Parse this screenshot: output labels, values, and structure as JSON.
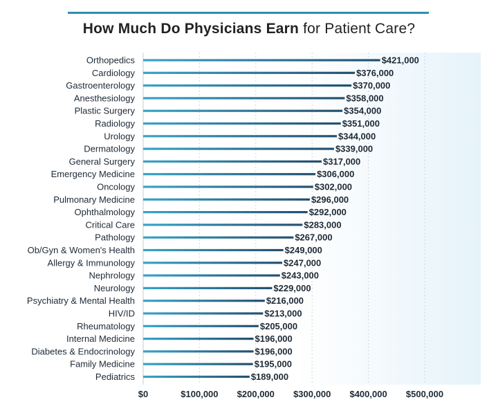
{
  "title": {
    "strong": "How Much Do Physicians Earn",
    "rest": " for Patient Care?"
  },
  "colors": {
    "bar": "#2a5f80",
    "bar_highlight": "#3aa4c8",
    "plot_bg_right": "#e9f5fb",
    "title_rule": "#2f8fb0",
    "grid": "#c9d8e0"
  },
  "chart_data": {
    "type": "bar",
    "orientation": "horizontal",
    "title": "How Much Do Physicians Earn for Patient Care?",
    "xlabel": "",
    "ylabel": "",
    "xlim": [
      0,
      500000
    ],
    "xticks": [
      0,
      100000,
      200000,
      300000,
      400000,
      500000
    ],
    "xtick_labels": [
      "$0",
      "$100,000",
      "$200,000",
      "$300,000",
      "$400,000",
      "$500,000"
    ],
    "grid": "vertical dotted",
    "categories": [
      "Orthopedics",
      "Cardiology",
      "Gastroenterology",
      "Anesthesiology",
      "Plastic Surgery",
      "Radiology",
      "Urology",
      "Dermatology",
      "General Surgery",
      "Emergency Medicine",
      "Oncology",
      "Pulmonary Medicine",
      "Ophthalmology",
      "Critical Care",
      "Pathology",
      "Ob/Gyn & Women's Health",
      "Allergy & Immunology",
      "Nephrology",
      "Neurology",
      "Psychiatry & Mental Health",
      "HIV/ID",
      "Rheumatology",
      "Internal Medicine",
      "Diabetes & Endocrinology",
      "Family Medicine",
      "Pediatrics"
    ],
    "values": [
      421000,
      376000,
      370000,
      358000,
      354000,
      351000,
      344000,
      339000,
      317000,
      306000,
      302000,
      296000,
      292000,
      283000,
      267000,
      249000,
      247000,
      243000,
      229000,
      216000,
      213000,
      205000,
      196000,
      196000,
      195000,
      189000
    ],
    "value_labels": [
      "$421,000",
      "$376,000",
      "$370,000",
      "$358,000",
      "$354,000",
      "$351,000",
      "$344,000",
      "$339,000",
      "$317,000",
      "$306,000",
      "$302,000",
      "$296,000",
      "$292,000",
      "$283,000",
      "$267,000",
      "$249,000",
      "$247,000",
      "$243,000",
      "$229,000",
      "$216,000",
      "$213,000",
      "$205,000",
      "$196,000",
      "$196,000",
      "$195,000",
      "$189,000"
    ]
  }
}
